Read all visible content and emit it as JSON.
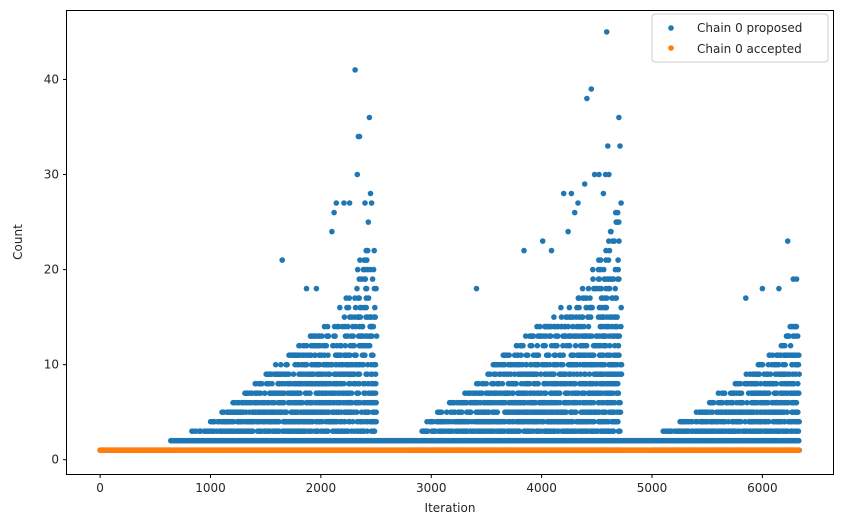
{
  "chart_data": {
    "type": "scatter",
    "title": "",
    "xlabel": "Iteration",
    "ylabel": "Count",
    "xlim": [
      -300,
      6640
    ],
    "ylim": [
      -1.5,
      47.2
    ],
    "xticks": [
      0,
      1000,
      2000,
      3000,
      4000,
      5000,
      6000
    ],
    "yticks": [
      0,
      10,
      20,
      30,
      40
    ],
    "grid": false,
    "legend_position": "top-right",
    "iterations": 6331,
    "series": [
      {
        "name": "Chain 0 proposed",
        "color": "#1f77b4",
        "baseline": [
          {
            "from": 0,
            "to": 640,
            "value": 1
          },
          {
            "from": 640,
            "to": 6331,
            "value": 2
          }
        ],
        "clusters": [
          {
            "from": 700,
            "to": 2500,
            "rows": [
              [
                1,
                2500
              ],
              [
                3,
                830
              ],
              [
                4,
                1000
              ],
              [
                5,
                1100
              ],
              [
                6,
                1200
              ],
              [
                7,
                1300
              ],
              [
                8,
                1400
              ],
              [
                9,
                1500
              ],
              [
                10,
                1580
              ],
              [
                11,
                1700
              ],
              [
                12,
                1800
              ],
              [
                13,
                1900
              ],
              [
                14,
                2000
              ],
              [
                15,
                2080
              ],
              [
                16,
                2150
              ],
              [
                17,
                2200
              ],
              [
                18,
                2250
              ],
              [
                19,
                2280
              ],
              [
                20,
                2300
              ],
              [
                21,
                2350
              ],
              [
                22,
                2400
              ]
            ]
          },
          {
            "from": 2700,
            "to": 4720,
            "rows": [
              [
                1,
                2800
              ],
              [
                3,
                2900
              ],
              [
                4,
                2960
              ],
              [
                5,
                3050
              ],
              [
                6,
                3150
              ],
              [
                7,
                3300
              ],
              [
                8,
                3400
              ],
              [
                9,
                3480
              ],
              [
                10,
                3560
              ],
              [
                11,
                3650
              ],
              [
                12,
                3750
              ],
              [
                13,
                3850
              ],
              [
                14,
                3950
              ],
              [
                15,
                4050
              ],
              [
                16,
                4150
              ],
              [
                17,
                4250
              ],
              [
                18,
                4350
              ],
              [
                19,
                4400
              ],
              [
                20,
                4450
              ],
              [
                21,
                4500
              ],
              [
                22,
                4550
              ],
              [
                23,
                4600
              ],
              [
                24,
                4620
              ],
              [
                25,
                4640
              ],
              [
                26,
                4660
              ],
              [
                27,
                4680
              ]
            ]
          },
          {
            "from": 4800,
            "to": 6331,
            "rows": [
              [
                1,
                5000
              ],
              [
                3,
                5100
              ],
              [
                4,
                5250
              ],
              [
                5,
                5400
              ],
              [
                6,
                5500
              ],
              [
                7,
                5600
              ],
              [
                8,
                5750
              ],
              [
                9,
                5850
              ],
              [
                10,
                5950
              ],
              [
                11,
                6050
              ],
              [
                12,
                6150
              ],
              [
                13,
                6200
              ],
              [
                14,
                6250
              ],
              [
                15,
                6300
              ]
            ]
          }
        ],
        "outliers": [
          {
            "x": 1650,
            "y": 21
          },
          {
            "x": 1870,
            "y": 18
          },
          {
            "x": 1960,
            "y": 18
          },
          {
            "x": 2100,
            "y": 24
          },
          {
            "x": 2120,
            "y": 26
          },
          {
            "x": 2140,
            "y": 27
          },
          {
            "x": 2210,
            "y": 27
          },
          {
            "x": 2260,
            "y": 27
          },
          {
            "x": 2310,
            "y": 41
          },
          {
            "x": 2330,
            "y": 30
          },
          {
            "x": 2340,
            "y": 34
          },
          {
            "x": 2350,
            "y": 34
          },
          {
            "x": 2400,
            "y": 27
          },
          {
            "x": 2430,
            "y": 25
          },
          {
            "x": 2440,
            "y": 36
          },
          {
            "x": 2450,
            "y": 28
          },
          {
            "x": 2460,
            "y": 27
          },
          {
            "x": 3410,
            "y": 18
          },
          {
            "x": 3840,
            "y": 22
          },
          {
            "x": 4010,
            "y": 23
          },
          {
            "x": 4090,
            "y": 22
          },
          {
            "x": 4200,
            "y": 28
          },
          {
            "x": 4240,
            "y": 24
          },
          {
            "x": 4270,
            "y": 28
          },
          {
            "x": 4300,
            "y": 26
          },
          {
            "x": 4330,
            "y": 27
          },
          {
            "x": 4390,
            "y": 29
          },
          {
            "x": 4410,
            "y": 38
          },
          {
            "x": 4450,
            "y": 39
          },
          {
            "x": 4480,
            "y": 30
          },
          {
            "x": 4520,
            "y": 30
          },
          {
            "x": 4560,
            "y": 28
          },
          {
            "x": 4580,
            "y": 30
          },
          {
            "x": 4590,
            "y": 45
          },
          {
            "x": 4600,
            "y": 33
          },
          {
            "x": 4610,
            "y": 30
          },
          {
            "x": 4700,
            "y": 36
          },
          {
            "x": 4710,
            "y": 33
          },
          {
            "x": 4720,
            "y": 27
          },
          {
            "x": 5850,
            "y": 17
          },
          {
            "x": 6000,
            "y": 18
          },
          {
            "x": 6150,
            "y": 18
          },
          {
            "x": 6230,
            "y": 23
          },
          {
            "x": 6280,
            "y": 19
          },
          {
            "x": 6310,
            "y": 19
          }
        ]
      },
      {
        "name": "Chain 0 accepted",
        "color": "#ff7f0e",
        "baseline": [
          {
            "from": 0,
            "to": 6331,
            "value": 1
          }
        ]
      }
    ]
  }
}
